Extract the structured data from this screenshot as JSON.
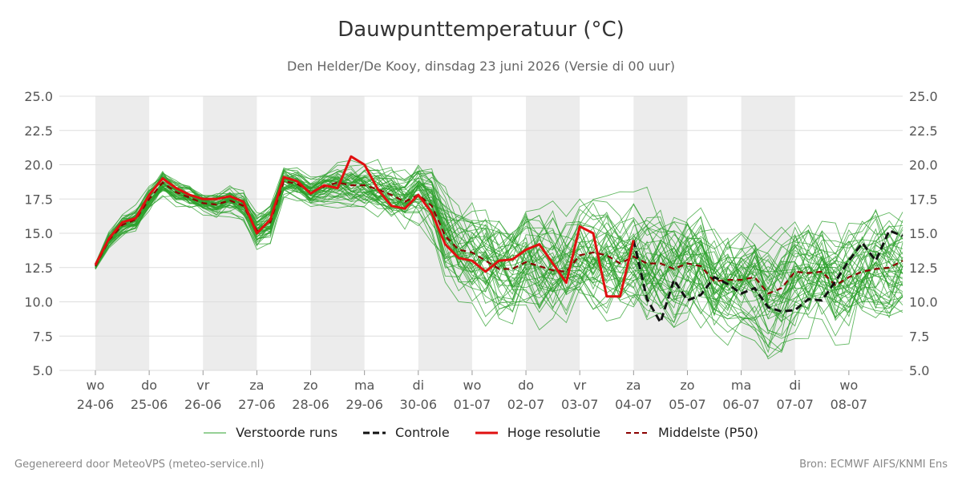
{
  "header": {
    "title": "Dauwpunttemperatuur (°C)",
    "subtitle": "Den Helder/De Kooy, dinsdag 23 juni 2026 (Versie di 00 uur)"
  },
  "legend": {
    "ensemble": "Verstoorde runs",
    "control": "Controle",
    "hires": "Hoge resolutie",
    "median": "Middelste (P50)"
  },
  "footer": {
    "left": "Gegenereerd door MeteoVPS (meteo-service.nl)",
    "right": "Bron: ECMWF AIFS/KNMI Ens"
  },
  "colors": {
    "ensemble": "#2ca02c",
    "control": "#111111",
    "hires": "#e01010",
    "median": "#8b0000",
    "weekend_band": "#ececec",
    "grid": "#dddddd"
  },
  "chart_data": {
    "type": "line",
    "title": "Dauwpunttemperatuur (°C)",
    "subtitle": "Den Helder/De Kooy, dinsdag 23 juni 2026 (Versie di 00 uur)",
    "xlabel": "",
    "ylabel": "",
    "ylim": [
      5,
      25
    ],
    "yticks": [
      "5.0",
      "7.5",
      "10.0",
      "12.5",
      "15.0",
      "17.5",
      "20.0",
      "22.5",
      "25.0"
    ],
    "xlim_days": [
      23.3,
      38.0
    ],
    "x_unit": "dag (juni/juli 2026, 0 = 23-06 00 uur)",
    "x_ticks": [
      {
        "weekday": "wo",
        "date": "24-06"
      },
      {
        "weekday": "do",
        "date": "25-06"
      },
      {
        "weekday": "vr",
        "date": "26-06"
      },
      {
        "weekday": "za",
        "date": "27-06"
      },
      {
        "weekday": "zo",
        "date": "28-06"
      },
      {
        "weekday": "ma",
        "date": "29-06"
      },
      {
        "weekday": "di",
        "date": "30-06"
      },
      {
        "weekday": "wo",
        "date": "01-07"
      },
      {
        "weekday": "do",
        "date": "02-07"
      },
      {
        "weekday": "vr",
        "date": "03-07"
      },
      {
        "weekday": "za",
        "date": "04-07"
      },
      {
        "weekday": "zo",
        "date": "05-07"
      },
      {
        "weekday": "ma",
        "date": "06-07"
      },
      {
        "weekday": "di",
        "date": "07-07"
      },
      {
        "weekday": "wo",
        "date": "08-07"
      }
    ],
    "shaded_days": [
      "24-06",
      "26-06",
      "28-06",
      "30-06",
      "02-07",
      "04-07",
      "06-07"
    ],
    "legend_position": "bottom",
    "grid": true,
    "series": [
      {
        "name": "Hoge resolutie",
        "style": "solid",
        "x": [
          0.0,
          0.25,
          0.5,
          0.75,
          1.0,
          1.25,
          1.5,
          1.75,
          2.0,
          2.25,
          2.5,
          2.75,
          3.0,
          3.25,
          3.5,
          3.75,
          4.0,
          4.25,
          4.5,
          4.75,
          5.0,
          5.25,
          5.5,
          5.75,
          6.0,
          6.25,
          6.5,
          6.75,
          7.0,
          7.25,
          7.5,
          7.75,
          8.0,
          8.25,
          8.5,
          8.75,
          9.0,
          9.25,
          9.5,
          9.75,
          10.0
        ],
        "y": [
          12.7,
          14.6,
          15.8,
          16.1,
          17.8,
          19.0,
          18.3,
          17.8,
          17.5,
          17.5,
          17.7,
          17.3,
          15.0,
          16.0,
          19.1,
          18.8,
          17.9,
          18.5,
          18.3,
          20.6,
          20.0,
          18.2,
          17.0,
          16.8,
          17.8,
          16.5,
          14.2,
          13.2,
          13.0,
          12.2,
          13.0,
          13.1,
          13.8,
          14.2,
          12.8,
          11.4,
          15.5,
          15.0,
          10.4,
          10.4,
          14.5
        ]
      },
      {
        "name": "Controle",
        "style": "dashed",
        "x": [
          10.0,
          10.25,
          10.5,
          10.75,
          11.0,
          11.25,
          11.5,
          11.75,
          12.0,
          12.25,
          12.5,
          12.75,
          13.0,
          13.25,
          13.5,
          13.75,
          14.0,
          14.25,
          14.5,
          14.75,
          15.0
        ],
        "y": [
          14.5,
          10.2,
          8.5,
          11.6,
          10.1,
          10.5,
          11.8,
          11.3,
          10.6,
          11.0,
          9.6,
          9.3,
          9.4,
          10.2,
          10.1,
          11.5,
          13.0,
          14.3,
          13.0,
          15.2,
          14.8
        ]
      },
      {
        "name": "Middelste (P50)",
        "style": "dashed",
        "x": [
          0.0,
          0.25,
          0.5,
          0.75,
          1.0,
          1.25,
          1.5,
          1.75,
          2.0,
          2.25,
          2.5,
          2.75,
          3.0,
          3.25,
          3.5,
          3.75,
          4.0,
          4.25,
          4.5,
          4.75,
          5.0,
          5.25,
          5.5,
          5.75,
          6.0,
          6.25,
          6.5,
          6.75,
          7.0,
          7.25,
          7.5,
          7.75,
          8.0,
          8.25,
          8.5,
          8.75,
          9.0,
          9.25,
          9.5,
          9.75,
          10.0,
          10.25,
          10.5,
          10.75,
          11.0,
          11.25,
          11.5,
          11.75,
          12.0,
          12.25,
          12.5,
          12.75,
          13.0,
          13.25,
          13.5,
          13.75,
          14.0,
          14.25,
          14.5,
          14.75,
          15.0
        ],
        "y": [
          12.6,
          14.5,
          15.6,
          16.0,
          17.5,
          18.7,
          18.0,
          17.6,
          17.2,
          17.1,
          17.4,
          17.0,
          15.2,
          15.8,
          18.8,
          18.6,
          18.0,
          18.4,
          18.7,
          18.5,
          18.5,
          18.2,
          17.8,
          17.3,
          17.8,
          17.0,
          14.8,
          13.8,
          13.6,
          13.0,
          12.4,
          12.4,
          12.9,
          12.6,
          12.3,
          12.2,
          13.4,
          13.6,
          13.4,
          12.8,
          13.3,
          12.8,
          12.8,
          12.4,
          12.8,
          12.6,
          11.5,
          11.6,
          11.6,
          11.8,
          10.6,
          11.0,
          12.2,
          12.1,
          12.2,
          11.2,
          11.8,
          12.2,
          12.4,
          12.5,
          13.0
        ]
      },
      {
        "name": "Verstoorde runs",
        "style": "thin",
        "note": "ensemble spread",
        "x_start": 0.0,
        "x_step": 0.25,
        "base_mean": [
          12.6,
          14.5,
          15.6,
          16.0,
          17.5,
          18.7,
          18.0,
          17.6,
          17.2,
          17.1,
          17.4,
          17.0,
          15.2,
          15.8,
          18.8,
          18.6,
          18.0,
          18.4,
          18.7,
          18.5,
          18.5,
          18.2,
          17.8,
          17.3,
          17.8,
          17.0,
          14.8,
          13.8,
          13.6,
          13.0,
          12.4,
          12.4,
          12.9,
          12.6,
          12.3,
          12.2,
          13.4,
          13.6,
          13.4,
          12.8,
          13.3,
          12.8,
          12.8,
          12.4,
          12.8,
          12.6,
          11.5,
          11.6,
          11.6,
          11.8,
          10.6,
          11.0,
          12.2,
          12.1,
          12.2,
          11.2,
          11.8,
          12.2,
          12.4,
          12.5,
          13.0
        ],
        "spread": [
          0.2,
          0.4,
          0.5,
          0.6,
          0.6,
          0.7,
          0.6,
          0.6,
          0.6,
          0.7,
          0.8,
          0.9,
          1.0,
          1.0,
          0.8,
          0.8,
          0.8,
          0.9,
          1.0,
          1.1,
          1.2,
          1.3,
          1.4,
          1.5,
          1.6,
          1.8,
          2.2,
          2.4,
          2.6,
          2.7,
          2.8,
          2.8,
          2.9,
          2.9,
          3.0,
          3.0,
          3.0,
          3.0,
          3.0,
          3.0,
          3.0,
          3.0,
          3.0,
          3.0,
          3.0,
          3.0,
          3.0,
          3.0,
          3.0,
          3.0,
          3.0,
          3.0,
          3.0,
          3.0,
          3.0,
          3.0,
          3.0,
          3.0,
          3.0,
          3.0,
          3.0
        ],
        "members": 50
      }
    ]
  }
}
